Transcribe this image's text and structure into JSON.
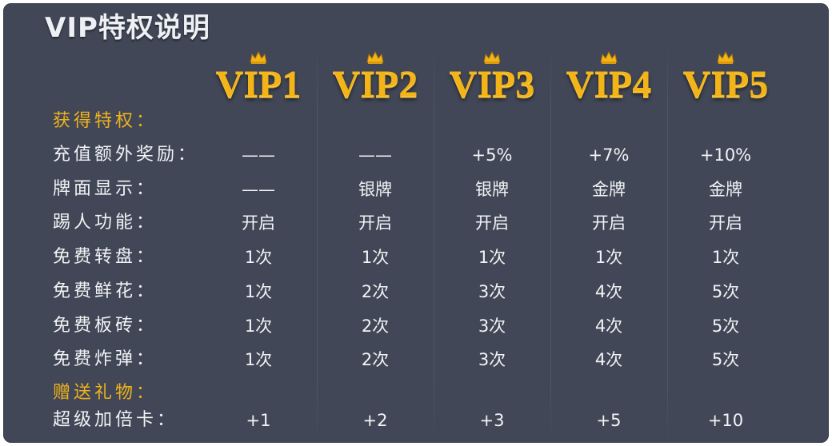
{
  "title": "VIP特权说明",
  "colors": {
    "background": "#414756",
    "accent_gold": "#f0b21c",
    "text": "#f2f3f6"
  },
  "levels": [
    {
      "label": "VIP1",
      "icon": "crown-icon"
    },
    {
      "label": "VIP2",
      "icon": "crown-icon"
    },
    {
      "label": "VIP3",
      "icon": "crown-icon"
    },
    {
      "label": "VIP4",
      "icon": "crown-icon"
    },
    {
      "label": "VIP5",
      "icon": "crown-icon"
    }
  ],
  "sections": {
    "privileges": "获得特权：",
    "gifts": "赠送礼物："
  },
  "rows": [
    {
      "label": "充值额外奖励：",
      "values": [
        "——",
        "——",
        "+5%",
        "+7%",
        "+10%"
      ]
    },
    {
      "label": "牌面显示：",
      "values": [
        "——",
        "银牌",
        "银牌",
        "金牌",
        "金牌"
      ]
    },
    {
      "label": "踢人功能：",
      "values": [
        "开启",
        "开启",
        "开启",
        "开启",
        "开启"
      ]
    },
    {
      "label": "免费转盘：",
      "values": [
        "1次",
        "1次",
        "1次",
        "1次",
        "1次"
      ]
    },
    {
      "label": "免费鲜花：",
      "values": [
        "1次",
        "2次",
        "3次",
        "4次",
        "5次"
      ]
    },
    {
      "label": "免费板砖：",
      "values": [
        "1次",
        "2次",
        "3次",
        "4次",
        "5次"
      ]
    },
    {
      "label": "免费炸弹：",
      "values": [
        "1次",
        "2次",
        "3次",
        "4次",
        "5次"
      ]
    },
    {
      "label": "超级加倍卡：",
      "values": [
        "+1",
        "+2",
        "+3",
        "+5",
        "+10"
      ]
    }
  ]
}
